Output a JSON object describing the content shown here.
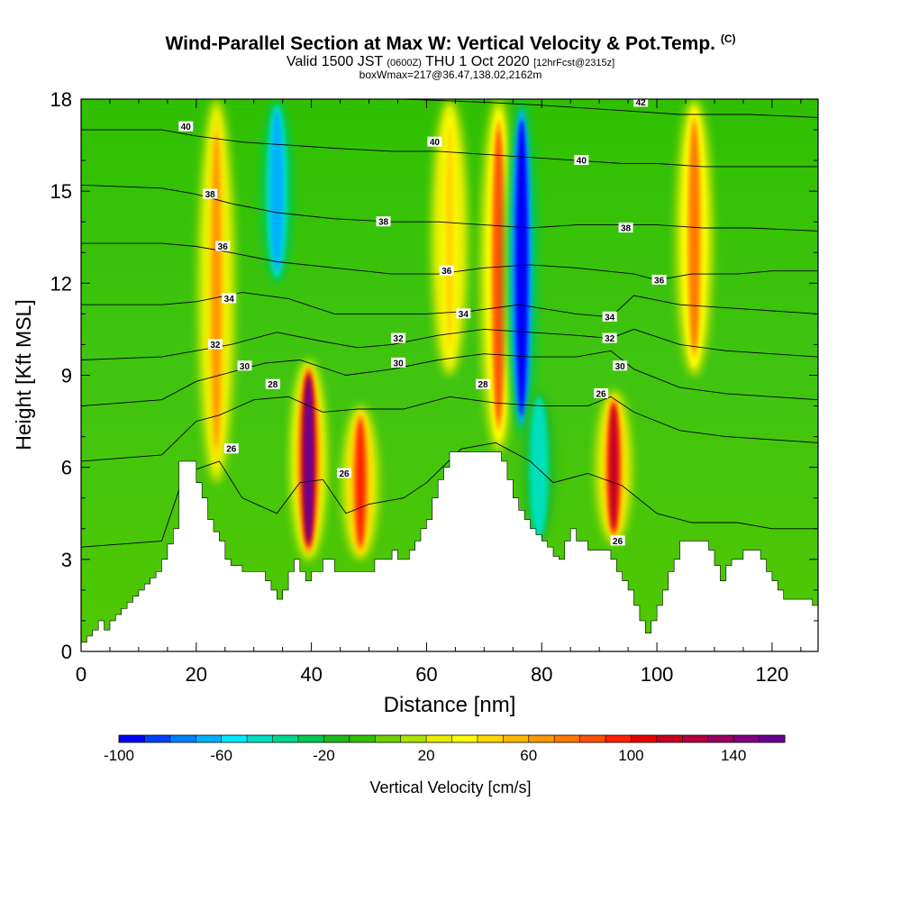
{
  "chart_data": {
    "type": "heatmap",
    "title": "Wind-Parallel Section at Max W: Vertical Velocity & Pot.Temp.",
    "title_mark": "(C)",
    "subtitle_prefix": "Valid 1500 JST",
    "subtitle_utc": "(0600Z)",
    "subtitle_date": "THU 1 Oct 2020",
    "subtitle_fcst": "[12hrFcst@2315z]",
    "subtitle2": "boxWmax=217@36.47,138.02,2162m",
    "xlabel": "Distance [nm]",
    "ylabel": "Height [Kft MSL]",
    "xlim": [
      0,
      128
    ],
    "ylim": [
      0,
      18
    ],
    "x_ticks": [
      0,
      20,
      40,
      60,
      80,
      100,
      120
    ],
    "y_ticks": [
      0,
      3,
      6,
      9,
      12,
      15,
      18
    ],
    "colorbar": {
      "label": "Vertical Velocity [cm/s]",
      "range": [
        -100,
        160
      ],
      "step": 10,
      "tick_labels": [
        -100,
        -60,
        -20,
        20,
        60,
        100,
        140
      ],
      "colors": [
        "#0000ff",
        "#0040ff",
        "#0080ff",
        "#00b0ff",
        "#00e8ff",
        "#00e0c0",
        "#00d890",
        "#00c850",
        "#20b820",
        "#30c000",
        "#70d000",
        "#b0e000",
        "#e8f000",
        "#ffff00",
        "#ffd800",
        "#ffb800",
        "#ff9800",
        "#ff7800",
        "#ff5000",
        "#ff2000",
        "#e80000",
        "#c80020",
        "#b00040",
        "#980060",
        "#800080",
        "#6a0090"
      ]
    },
    "vertical_velocity_features": [
      {
        "x": 23.5,
        "y_range": [
          5.5,
          18
        ],
        "w_max": 60
      },
      {
        "x": 34,
        "y_range": [
          12,
          18
        ],
        "w_min": -70
      },
      {
        "x": 39.5,
        "y_range": [
          3,
          9.5
        ],
        "w_max": 150
      },
      {
        "x": 48.5,
        "y_range": [
          3,
          8
        ],
        "w_max": 90
      },
      {
        "x": 64,
        "y_range": [
          9,
          18
        ],
        "w_max": 40
      },
      {
        "x": 72.5,
        "y_range": [
          6.5,
          18
        ],
        "w_max": 80
      },
      {
        "x": 76.5,
        "y_range": [
          7,
          18
        ],
        "w_min": -100
      },
      {
        "x": 79.5,
        "y_range": [
          3.5,
          8.5
        ],
        "w_min": -50
      },
      {
        "x": 92.5,
        "y_range": [
          3.5,
          8.5
        ],
        "w_max": 110
      },
      {
        "x": 106.5,
        "y_range": [
          9,
          18
        ],
        "w_max": 70
      }
    ],
    "terrain_height": [
      [
        0,
        0.3
      ],
      [
        1,
        0.5
      ],
      [
        2,
        0.7
      ],
      [
        3,
        1.0
      ],
      [
        4,
        0.7
      ],
      [
        5,
        1.0
      ],
      [
        6,
        1.2
      ],
      [
        7,
        1.4
      ],
      [
        8,
        1.6
      ],
      [
        9,
        1.8
      ],
      [
        10,
        2.0
      ],
      [
        11,
        2.2
      ],
      [
        12,
        2.4
      ],
      [
        13,
        2.6
      ],
      [
        14,
        3.0
      ],
      [
        15,
        3.5
      ],
      [
        16,
        4.0
      ],
      [
        17,
        6.2
      ],
      [
        19,
        6.2
      ],
      [
        20,
        5.5
      ],
      [
        21,
        5.0
      ],
      [
        22,
        4.3
      ],
      [
        23,
        3.9
      ],
      [
        24,
        3.6
      ],
      [
        25,
        3.0
      ],
      [
        26,
        2.8
      ],
      [
        28,
        2.6
      ],
      [
        30,
        2.6
      ],
      [
        32,
        2.3
      ],
      [
        33,
        2.0
      ],
      [
        34,
        1.7
      ],
      [
        35,
        2.0
      ],
      [
        36,
        2.6
      ],
      [
        37,
        3.0
      ],
      [
        38,
        2.6
      ],
      [
        39,
        2.3
      ],
      [
        40,
        2.6
      ],
      [
        42,
        3.0
      ],
      [
        44,
        2.6
      ],
      [
        46,
        2.6
      ],
      [
        50,
        2.6
      ],
      [
        51,
        3.0
      ],
      [
        53,
        3.0
      ],
      [
        54,
        3.3
      ],
      [
        55,
        3.0
      ],
      [
        57,
        3.3
      ],
      [
        58,
        3.6
      ],
      [
        59,
        4.0
      ],
      [
        60,
        4.3
      ],
      [
        61,
        5.0
      ],
      [
        62,
        5.6
      ],
      [
        63,
        6.0
      ],
      [
        64,
        6.5
      ],
      [
        72,
        6.5
      ],
      [
        73,
        6.2
      ],
      [
        74,
        5.6
      ],
      [
        75,
        5.0
      ],
      [
        76,
        4.6
      ],
      [
        77,
        4.3
      ],
      [
        78,
        4.0
      ],
      [
        79,
        3.8
      ],
      [
        80,
        3.6
      ],
      [
        81,
        3.4
      ],
      [
        82,
        3.1
      ],
      [
        83,
        3.0
      ],
      [
        84,
        3.6
      ],
      [
        85,
        4.0
      ],
      [
        86,
        3.6
      ],
      [
        87,
        3.6
      ],
      [
        88,
        3.3
      ],
      [
        91,
        3.3
      ],
      [
        92,
        3.0
      ],
      [
        93,
        2.6
      ],
      [
        94,
        2.3
      ],
      [
        95,
        2.0
      ],
      [
        96,
        1.5
      ],
      [
        97,
        1.0
      ],
      [
        98,
        0.6
      ],
      [
        99,
        1.0
      ],
      [
        100,
        1.5
      ],
      [
        101,
        2.0
      ],
      [
        102,
        2.6
      ],
      [
        103,
        3.0
      ],
      [
        104,
        3.6
      ],
      [
        108,
        3.6
      ],
      [
        109,
        3.3
      ],
      [
        110,
        2.8
      ],
      [
        111,
        2.3
      ],
      [
        112,
        2.8
      ],
      [
        113,
        3.0
      ],
      [
        115,
        3.3
      ],
      [
        118,
        3.0
      ],
      [
        119,
        2.6
      ],
      [
        120,
        2.3
      ],
      [
        121,
        2.0
      ],
      [
        122,
        1.7
      ],
      [
        126,
        1.7
      ],
      [
        127,
        1.5
      ],
      [
        128,
        1.2
      ]
    ],
    "isentropes": [
      {
        "label": "26",
        "points": [
          [
            0,
            3.4
          ],
          [
            14,
            3.6
          ],
          [
            18,
            5.8
          ],
          [
            24,
            6.2
          ],
          [
            28,
            5.0
          ],
          [
            34,
            4.5
          ],
          [
            38,
            5.5
          ],
          [
            42,
            5.6
          ],
          [
            46,
            4.5
          ],
          [
            50,
            4.8
          ],
          [
            56,
            5.0
          ],
          [
            60,
            5.5
          ],
          [
            66,
            6.6
          ],
          [
            72,
            6.8
          ],
          [
            78,
            6.2
          ],
          [
            82,
            5.5
          ],
          [
            88,
            5.8
          ],
          [
            94,
            5.4
          ],
          [
            100,
            4.5
          ],
          [
            106,
            4.2
          ],
          [
            114,
            4.2
          ],
          [
            120,
            4.0
          ],
          [
            128,
            4.0
          ]
        ]
      },
      {
        "label": "28",
        "points": [
          [
            0,
            6.2
          ],
          [
            14,
            6.4
          ],
          [
            20,
            7.5
          ],
          [
            24,
            7.7
          ],
          [
            30,
            8.2
          ],
          [
            36,
            8.3
          ],
          [
            42,
            7.8
          ],
          [
            48,
            7.9
          ],
          [
            56,
            7.9
          ],
          [
            64,
            8.3
          ],
          [
            72,
            8.1
          ],
          [
            80,
            8.0
          ],
          [
            88,
            8.0
          ],
          [
            92,
            8.3
          ],
          [
            96,
            7.8
          ],
          [
            104,
            7.2
          ],
          [
            112,
            7.0
          ],
          [
            120,
            6.9
          ],
          [
            128,
            6.8
          ]
        ]
      },
      {
        "label": "30",
        "points": [
          [
            0,
            8.0
          ],
          [
            14,
            8.2
          ],
          [
            20,
            8.8
          ],
          [
            26,
            9.1
          ],
          [
            32,
            9.4
          ],
          [
            38,
            9.5
          ],
          [
            46,
            9.0
          ],
          [
            54,
            9.2
          ],
          [
            62,
            9.5
          ],
          [
            70,
            9.7
          ],
          [
            78,
            9.6
          ],
          [
            86,
            9.6
          ],
          [
            92,
            9.8
          ],
          [
            96,
            9.2
          ],
          [
            104,
            8.6
          ],
          [
            112,
            8.4
          ],
          [
            120,
            8.3
          ],
          [
            128,
            8.2
          ]
        ]
      },
      {
        "label": "32",
        "points": [
          [
            0,
            9.5
          ],
          [
            14,
            9.6
          ],
          [
            20,
            9.8
          ],
          [
            26,
            10.0
          ],
          [
            34,
            10.4
          ],
          [
            42,
            10.1
          ],
          [
            48,
            9.9
          ],
          [
            54,
            10.0
          ],
          [
            62,
            10.3
          ],
          [
            70,
            10.5
          ],
          [
            78,
            10.4
          ],
          [
            86,
            10.3
          ],
          [
            92,
            10.2
          ],
          [
            96,
            10.5
          ],
          [
            104,
            10.0
          ],
          [
            112,
            9.8
          ],
          [
            120,
            9.7
          ],
          [
            128,
            9.6
          ]
        ]
      },
      {
        "label": "34",
        "points": [
          [
            0,
            11.3
          ],
          [
            14,
            11.3
          ],
          [
            20,
            11.4
          ],
          [
            28,
            11.7
          ],
          [
            36,
            11.5
          ],
          [
            44,
            11.0
          ],
          [
            52,
            11.0
          ],
          [
            60,
            11.0
          ],
          [
            68,
            11.1
          ],
          [
            76,
            11.3
          ],
          [
            86,
            11.0
          ],
          [
            92,
            10.9
          ],
          [
            96,
            11.6
          ],
          [
            104,
            11.3
          ],
          [
            112,
            11.2
          ],
          [
            120,
            11.1
          ],
          [
            128,
            11.0
          ]
        ]
      },
      {
        "label": "36",
        "points": [
          [
            0,
            13.3
          ],
          [
            14,
            13.3
          ],
          [
            20,
            13.2
          ],
          [
            26,
            13.0
          ],
          [
            34,
            12.7
          ],
          [
            44,
            12.5
          ],
          [
            54,
            12.3
          ],
          [
            62,
            12.3
          ],
          [
            70,
            12.5
          ],
          [
            78,
            12.6
          ],
          [
            86,
            12.5
          ],
          [
            96,
            12.3
          ],
          [
            100,
            12.1
          ],
          [
            106,
            12.3
          ],
          [
            114,
            12.3
          ],
          [
            120,
            12.4
          ],
          [
            128,
            12.4
          ]
        ]
      },
      {
        "label": "38",
        "points": [
          [
            0,
            15.2
          ],
          [
            14,
            15.1
          ],
          [
            20,
            14.9
          ],
          [
            26,
            14.6
          ],
          [
            34,
            14.3
          ],
          [
            44,
            14.1
          ],
          [
            54,
            14.0
          ],
          [
            62,
            14.0
          ],
          [
            70,
            13.9
          ],
          [
            78,
            13.8
          ],
          [
            86,
            13.9
          ],
          [
            94,
            13.9
          ],
          [
            100,
            13.9
          ],
          [
            108,
            13.8
          ],
          [
            116,
            13.8
          ],
          [
            128,
            13.7
          ]
        ]
      },
      {
        "label": "40",
        "points": [
          [
            0,
            17.0
          ],
          [
            14,
            17.0
          ],
          [
            20,
            16.8
          ],
          [
            28,
            16.6
          ],
          [
            36,
            16.5
          ],
          [
            44,
            16.4
          ],
          [
            54,
            16.3
          ],
          [
            62,
            16.3
          ],
          [
            70,
            16.2
          ],
          [
            78,
            16.1
          ],
          [
            86,
            16.0
          ],
          [
            94,
            15.9
          ],
          [
            100,
            15.9
          ],
          [
            108,
            15.8
          ],
          [
            116,
            15.8
          ],
          [
            128,
            15.8
          ]
        ]
      },
      {
        "label": "42",
        "points": [
          [
            56,
            18.0
          ],
          [
            70,
            17.9
          ],
          [
            80,
            17.8
          ],
          [
            88,
            17.7
          ],
          [
            96,
            17.6
          ],
          [
            104,
            17.5
          ],
          [
            116,
            17.5
          ],
          [
            128,
            17.4
          ]
        ]
      }
    ],
    "contour_labels": [
      {
        "text": "40",
        "x": 18.2,
        "y": 17.1
      },
      {
        "text": "40",
        "x": 61.4,
        "y": 16.6
      },
      {
        "text": "40",
        "x": 86.9,
        "y": 16.0
      },
      {
        "text": "42",
        "x": 97.2,
        "y": 17.9
      },
      {
        "text": "38",
        "x": 22.4,
        "y": 14.9
      },
      {
        "text": "38",
        "x": 52.5,
        "y": 14.0
      },
      {
        "text": "38",
        "x": 94.6,
        "y": 13.8
      },
      {
        "text": "36",
        "x": 24.6,
        "y": 13.2
      },
      {
        "text": "36",
        "x": 63.5,
        "y": 12.4
      },
      {
        "text": "36",
        "x": 100.4,
        "y": 12.1
      },
      {
        "text": "34",
        "x": 25.7,
        "y": 11.5
      },
      {
        "text": "34",
        "x": 66.4,
        "y": 11.0
      },
      {
        "text": "34",
        "x": 91.8,
        "y": 10.9
      },
      {
        "text": "32",
        "x": 23.3,
        "y": 10.0
      },
      {
        "text": "32",
        "x": 55.1,
        "y": 10.2
      },
      {
        "text": "32",
        "x": 91.8,
        "y": 10.2
      },
      {
        "text": "30",
        "x": 28.4,
        "y": 9.3
      },
      {
        "text": "30",
        "x": 55.1,
        "y": 9.4
      },
      {
        "text": "30",
        "x": 93.6,
        "y": 9.3
      },
      {
        "text": "28",
        "x": 33.3,
        "y": 8.7
      },
      {
        "text": "28",
        "x": 69.8,
        "y": 8.7
      },
      {
        "text": "26",
        "x": 90.3,
        "y": 8.4
      },
      {
        "text": "26",
        "x": 26.1,
        "y": 6.6
      },
      {
        "text": "26",
        "x": 45.7,
        "y": 5.8
      },
      {
        "text": "26",
        "x": 93.2,
        "y": 3.6
      }
    ]
  }
}
